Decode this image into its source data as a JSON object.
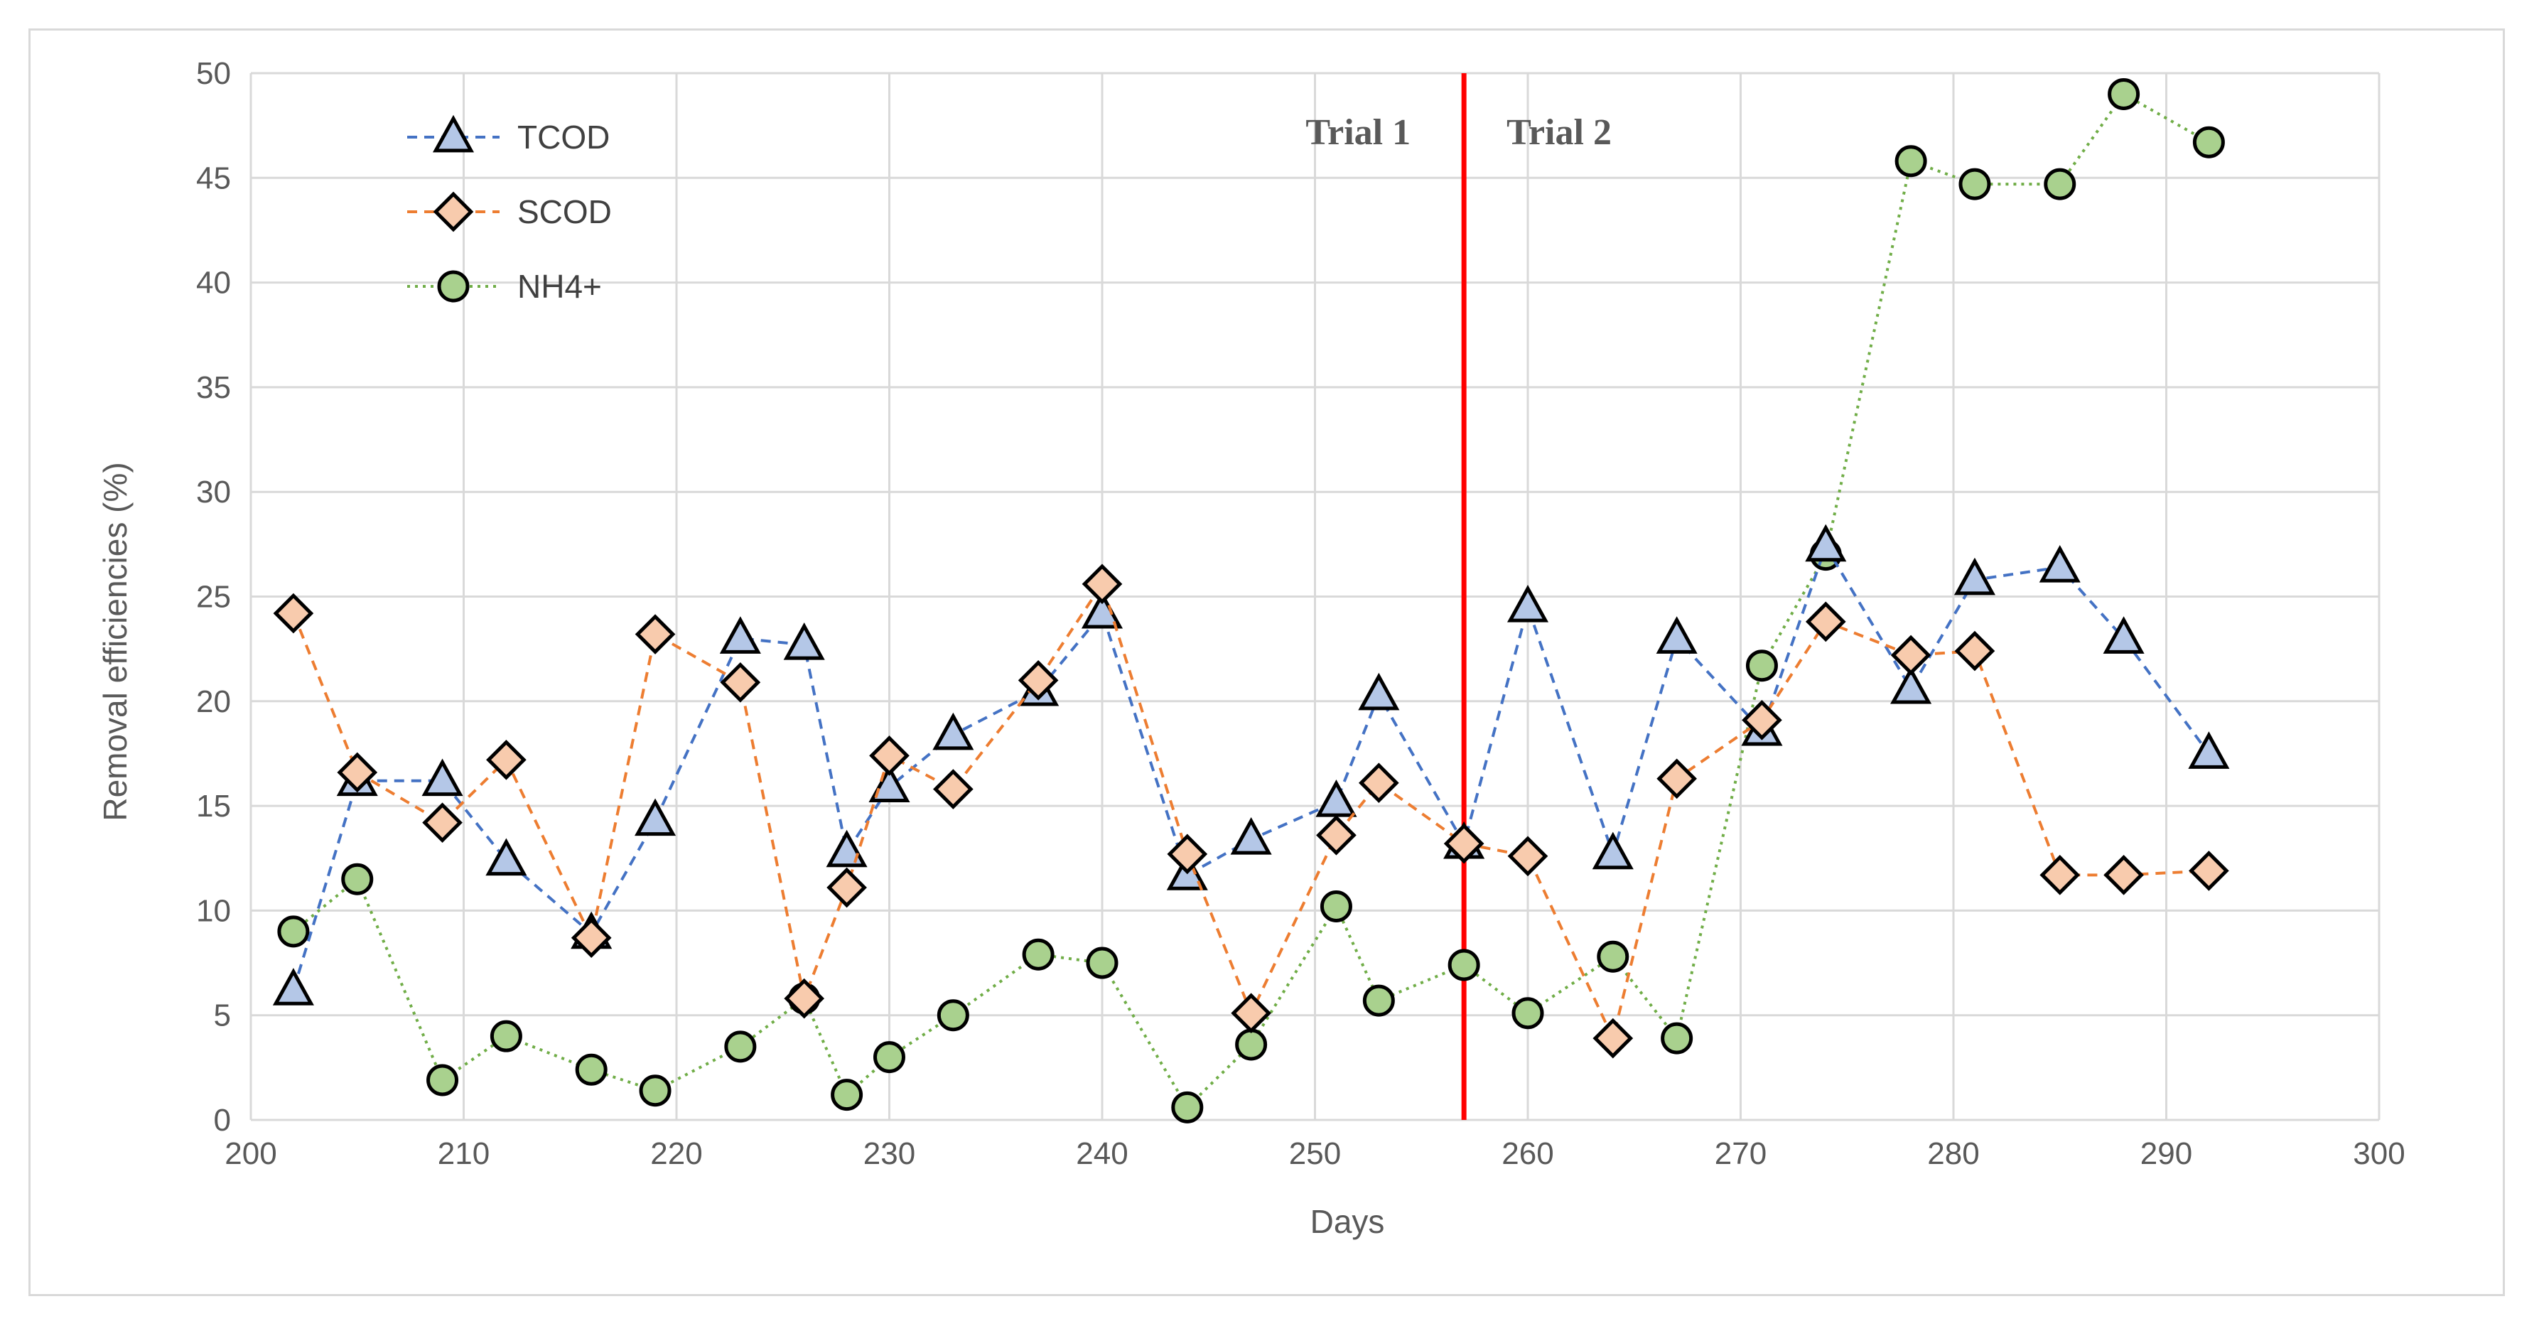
{
  "chart_data": {
    "type": "line",
    "xlabel": "Days",
    "ylabel": "Removal efficiencies (%)",
    "xlim": [
      200,
      300
    ],
    "ylim": [
      0,
      50
    ],
    "x_ticks": [
      200,
      210,
      220,
      230,
      240,
      250,
      260,
      270,
      280,
      290,
      300
    ],
    "y_ticks": [
      0,
      5,
      10,
      15,
      20,
      25,
      30,
      35,
      40,
      45,
      50
    ],
    "grid": true,
    "legend_position": "top-left",
    "series": [
      {
        "name": "TCOD",
        "marker": "triangle",
        "line_color": "#4472c4",
        "marker_fill": "#b4c7e7",
        "line_style": "dashed",
        "x": [
          202,
          205,
          209,
          212,
          216,
          219,
          223,
          226,
          228,
          230,
          233,
          237,
          240,
          244,
          247,
          251,
          253,
          257,
          260,
          264,
          267,
          271,
          274,
          278,
          281,
          285,
          288,
          292
        ],
        "y": [
          6.2,
          16.2,
          16.2,
          12.4,
          8.9,
          14.3,
          23.0,
          22.7,
          12.8,
          15.9,
          18.4,
          20.5,
          24.2,
          11.7,
          13.4,
          15.2,
          20.3,
          13.2,
          24.5,
          12.7,
          23.0,
          18.6,
          27.4,
          20.6,
          25.8,
          26.4,
          23.0,
          17.5
        ]
      },
      {
        "name": "SCOD",
        "marker": "diamond",
        "line_color": "#ed7d31",
        "marker_fill": "#f8cbad",
        "line_style": "dashed",
        "x": [
          202,
          205,
          209,
          212,
          216,
          219,
          223,
          226,
          228,
          230,
          233,
          237,
          240,
          244,
          247,
          251,
          253,
          257,
          260,
          264,
          267,
          271,
          274,
          278,
          281,
          285,
          288,
          292
        ],
        "y": [
          24.2,
          16.6,
          14.2,
          17.2,
          8.7,
          23.2,
          20.9,
          5.8,
          11.1,
          17.4,
          15.8,
          21.0,
          25.6,
          12.7,
          5.1,
          13.6,
          16.1,
          13.2,
          12.6,
          3.9,
          16.3,
          19.1,
          23.8,
          22.2,
          22.4,
          11.7,
          11.7,
          11.9
        ]
      },
      {
        "name": "NH4+",
        "marker": "circle",
        "line_color": "#70ad47",
        "marker_fill": "#a9d18e",
        "line_style": "dotted",
        "x": [
          202,
          205,
          209,
          212,
          216,
          219,
          223,
          226,
          228,
          230,
          233,
          237,
          240,
          244,
          247,
          251,
          253,
          257,
          260,
          264,
          267,
          271,
          274,
          278,
          281,
          285,
          288,
          292
        ],
        "y": [
          9.0,
          11.5,
          1.9,
          4.0,
          2.4,
          1.4,
          3.5,
          5.8,
          1.2,
          3.0,
          5.0,
          7.9,
          7.5,
          0.6,
          3.6,
          10.2,
          5.7,
          7.4,
          5.1,
          7.8,
          3.9,
          21.7,
          27.0,
          45.8,
          44.7,
          44.7,
          49.0,
          46.7
        ]
      }
    ],
    "divider": {
      "x": 257,
      "color": "#ff0000"
    },
    "annotations": [
      {
        "text": "Trial 1",
        "x": 257,
        "side": "left"
      },
      {
        "text": "Trial 2",
        "x": 257,
        "side": "right"
      }
    ],
    "colors": {
      "grid": "#d9d9d9",
      "marker_edge": "#000000",
      "text": "#595959",
      "frame": "#d9d9d9"
    }
  }
}
